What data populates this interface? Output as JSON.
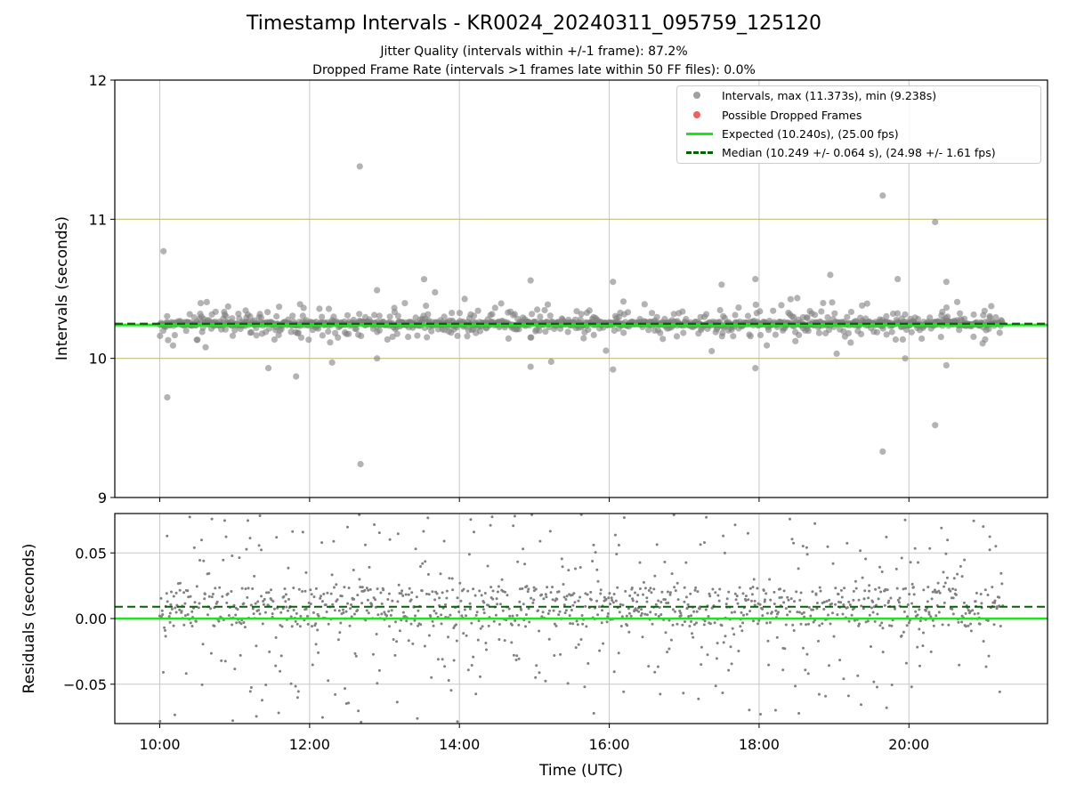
{
  "title": "Timestamp Intervals - KR0024_20240311_095759_125120",
  "subtitle_lines": [
    "Jitter Quality (intervals within +/-1 frame): 87.2%",
    "Dropped Frame Rate (intervals >1 frames late within 50 FF files): 0.0%"
  ],
  "colors": {
    "points": "#808080",
    "dropped": "#f06060",
    "expected": "#17e817",
    "median": "#006400",
    "ref_lines": "#c8bb7a",
    "grid": "#c8c8c8"
  },
  "legend": {
    "intervals": "Intervals, max (11.373s), min (9.238s)",
    "dropped": "Possible Dropped Frames",
    "expected": "Expected (10.240s), (25.00 fps)",
    "median": "Median (10.249 +/- 0.064 s), (24.98 +/- 1.61 fps)"
  },
  "chart_data": [
    {
      "type": "scatter",
      "panel": "top",
      "ylabel": "Intervals (seconds)",
      "ylim": [
        9,
        12
      ],
      "yticks": [
        "9",
        "10",
        "11",
        "12"
      ],
      "xlim_hours": [
        9.4,
        21.85
      ],
      "grid": "vertical",
      "legend_placement": "top-right",
      "reference_lines": [
        10,
        11
      ],
      "expected": 10.24,
      "median": 10.249,
      "max": 11.373,
      "min": 9.238,
      "outliers": [
        {
          "t": 10.05,
          "y": 10.77
        },
        {
          "t": 10.1,
          "y": 9.72
        },
        {
          "t": 11.45,
          "y": 9.93
        },
        {
          "t": 11.82,
          "y": 9.87
        },
        {
          "t": 12.3,
          "y": 9.97
        },
        {
          "t": 12.67,
          "y": 11.38
        },
        {
          "t": 12.68,
          "y": 9.24
        },
        {
          "t": 12.9,
          "y": 10.49
        },
        {
          "t": 12.9,
          "y": 10.0
        },
        {
          "t": 14.95,
          "y": 10.56
        },
        {
          "t": 14.95,
          "y": 9.94
        },
        {
          "t": 16.05,
          "y": 10.55
        },
        {
          "t": 16.05,
          "y": 9.92
        },
        {
          "t": 17.5,
          "y": 10.53
        },
        {
          "t": 17.95,
          "y": 10.57
        },
        {
          "t": 17.95,
          "y": 9.93
        },
        {
          "t": 18.95,
          "y": 10.6
        },
        {
          "t": 19.65,
          "y": 11.17
        },
        {
          "t": 19.65,
          "y": 9.33
        },
        {
          "t": 19.85,
          "y": 10.57
        },
        {
          "t": 19.95,
          "y": 10.0
        },
        {
          "t": 20.35,
          "y": 10.98
        },
        {
          "t": 20.35,
          "y": 9.52
        },
        {
          "t": 20.5,
          "y": 10.55
        },
        {
          "t": 20.5,
          "y": 9.95
        }
      ]
    },
    {
      "type": "scatter",
      "panel": "bottom",
      "xlabel": "Time (UTC)",
      "ylabel": "Residuals (seconds)",
      "ylim": [
        -0.08,
        0.08
      ],
      "yticks": [
        "−0.05",
        "0.00",
        "0.05"
      ],
      "ytick_values": [
        -0.05,
        0.0,
        0.05
      ],
      "xticks": [
        "10:00",
        "12:00",
        "14:00",
        "16:00",
        "18:00",
        "20:00"
      ],
      "xtick_values": [
        10,
        12,
        14,
        16,
        18,
        20
      ],
      "grid": "both",
      "expected_residual": 0.0,
      "median_residual": 0.009
    }
  ]
}
